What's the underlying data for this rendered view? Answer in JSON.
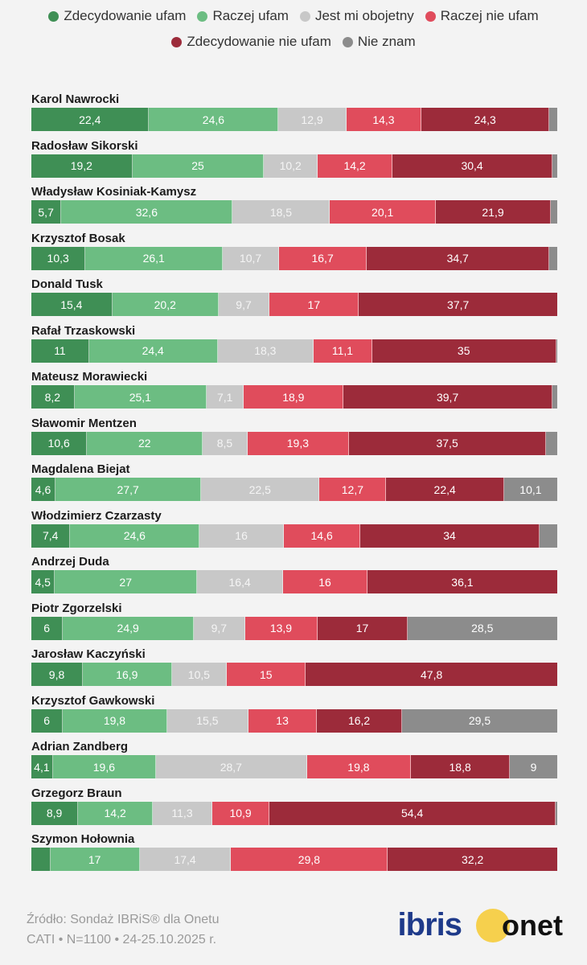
{
  "legend": {
    "items": [
      {
        "label": "Zdecydowanie ufam",
        "color": "#3f8f55"
      },
      {
        "label": "Raczej ufam",
        "color": "#6cbd82"
      },
      {
        "label": "Jest mi obojetny",
        "color": "#c8c8c8"
      },
      {
        "label": "Raczej nie ufam",
        "color": "#e04c5c"
      },
      {
        "label": "Zdecydowanie nie ufam",
        "color": "#9c2b3a"
      },
      {
        "label": "Nie znam",
        "color": "#8c8c8c"
      }
    ]
  },
  "chart_data": {
    "type": "bar",
    "orientation": "horizontal",
    "stacked": true,
    "categories": [
      "Karol Nawrocki",
      "Radosław Sikorski",
      "Władysław Kosiniak-Kamysz",
      "Krzysztof Bosak",
      "Donald Tusk",
      "Rafał Trzaskowski",
      "Mateusz Morawiecki",
      "Sławomir Mentzen",
      "Magdalena Biejat",
      "Włodzimierz Czarzasty",
      "Andrzej Duda",
      "Piotr Zgorzelski",
      "Jarosław Kaczyński",
      "Krzysztof Gawkowski",
      "Adrian Zandberg",
      "Grzegorz Braun",
      "Szymon Hołownia"
    ],
    "series": [
      {
        "name": "Zdecydowanie ufam",
        "values": [
          22.4,
          19.2,
          5.7,
          10.3,
          15.4,
          11,
          8.2,
          10.6,
          4.6,
          7.4,
          4.5,
          6,
          9.8,
          6,
          4.1,
          8.9,
          3.6
        ],
        "labels": [
          "22,4",
          "19,2",
          "5,7",
          "10,3",
          "15,4",
          "11",
          "8,2",
          "10,6",
          "4,6",
          "7,4",
          "4,5",
          "6",
          "9,8",
          "6",
          "4,1",
          "8,9",
          ""
        ]
      },
      {
        "name": "Raczej ufam",
        "values": [
          24.6,
          25,
          32.6,
          26.1,
          20.2,
          24.4,
          25.1,
          22,
          27.7,
          24.6,
          27,
          24.9,
          16.9,
          19.8,
          19.6,
          14.2,
          17
        ],
        "labels": [
          "24,6",
          "25",
          "32,6",
          "26,1",
          "20,2",
          "24,4",
          "25,1",
          "22",
          "27,7",
          "24,6",
          "27",
          "24,9",
          "16,9",
          "19,8",
          "19,6",
          "14,2",
          "17"
        ]
      },
      {
        "name": "Jest mi obojetny",
        "values": [
          12.9,
          10.2,
          18.5,
          10.7,
          9.7,
          18.3,
          7.1,
          8.5,
          22.5,
          16,
          16.4,
          9.7,
          10.5,
          15.5,
          28.7,
          11.3,
          17.4
        ],
        "labels": [
          "12,9",
          "10,2",
          "18,5",
          "10,7",
          "9,7",
          "18,3",
          "7,1",
          "8,5",
          "22,5",
          "16",
          "16,4",
          "9,7",
          "10,5",
          "15,5",
          "28,7",
          "11,3",
          "17,4"
        ]
      },
      {
        "name": "Raczej nie ufam",
        "values": [
          14.3,
          14.2,
          20.1,
          16.7,
          17,
          11.1,
          18.9,
          19.3,
          12.7,
          14.6,
          16,
          13.9,
          15,
          13,
          19.8,
          10.9,
          29.8
        ],
        "labels": [
          "14,3",
          "14,2",
          "20,1",
          "16,7",
          "17",
          "11,1",
          "18,9",
          "19,3",
          "12,7",
          "14,6",
          "16",
          "13,9",
          "15",
          "13",
          "19,8",
          "10,9",
          "29,8"
        ]
      },
      {
        "name": "Zdecydowanie nie ufam",
        "values": [
          24.3,
          30.4,
          21.9,
          34.7,
          37.7,
          35,
          39.7,
          37.5,
          22.4,
          34,
          36.1,
          17,
          47.8,
          16.2,
          18.8,
          54.4,
          32.2
        ],
        "labels": [
          "24,3",
          "30,4",
          "21,9",
          "34,7",
          "37,7",
          "35",
          "39,7",
          "37,5",
          "22,4",
          "34",
          "36,1",
          "17",
          "47,8",
          "16,2",
          "18,8",
          "54,4",
          "32,2"
        ]
      },
      {
        "name": "Nie znam",
        "values": [
          1.5,
          0.9,
          1.2,
          1.5,
          0,
          0.2,
          0.9,
          2.1,
          10.1,
          3.4,
          0,
          28.5,
          0,
          29.5,
          9,
          0.3,
          0
        ],
        "labels": [
          "",
          "",
          "",
          "",
          "",
          "",
          "",
          "",
          "10,1",
          "",
          "",
          "28,5",
          "",
          "29,5",
          "9",
          "",
          ""
        ]
      }
    ],
    "xlim": [
      0,
      100
    ]
  },
  "footer": {
    "source_line": "Źródło: Sondaż IBRiS® dla Onetu",
    "method_line": "CATI • N=1100 • 24-25.10.2025 r."
  },
  "logos": {
    "ibris": "ibris",
    "onet": "onet"
  }
}
